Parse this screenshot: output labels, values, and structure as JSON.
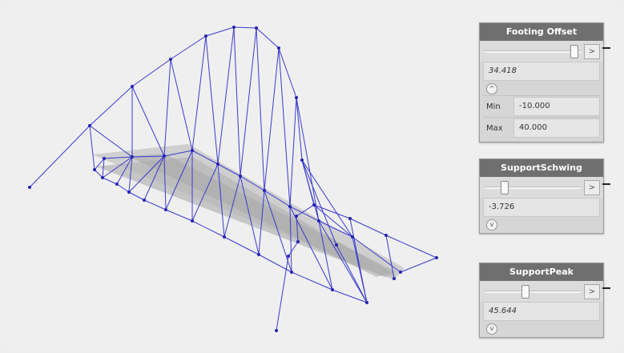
{
  "nodes": {
    "footing": {
      "title": "Footing Offset",
      "value": "34.418",
      "arrow": ">",
      "toggle": "^",
      "min_label": "Min",
      "min_value": "-10.000",
      "max_label": "Max",
      "max_value": "40.000"
    },
    "schwing": {
      "title": "SupportSchwing",
      "value": "-3.726",
      "arrow": ">",
      "toggle": "v"
    },
    "peak": {
      "title": "SupportPeak",
      "value": "45.644",
      "arrow": ">",
      "toggle": "v"
    }
  },
  "colors": {
    "wire": "#3a3ad0",
    "vertex": "#2424b0",
    "surface": "#c4c4c4",
    "node_header": "#6f6f6f",
    "canvas": "#efefef"
  }
}
